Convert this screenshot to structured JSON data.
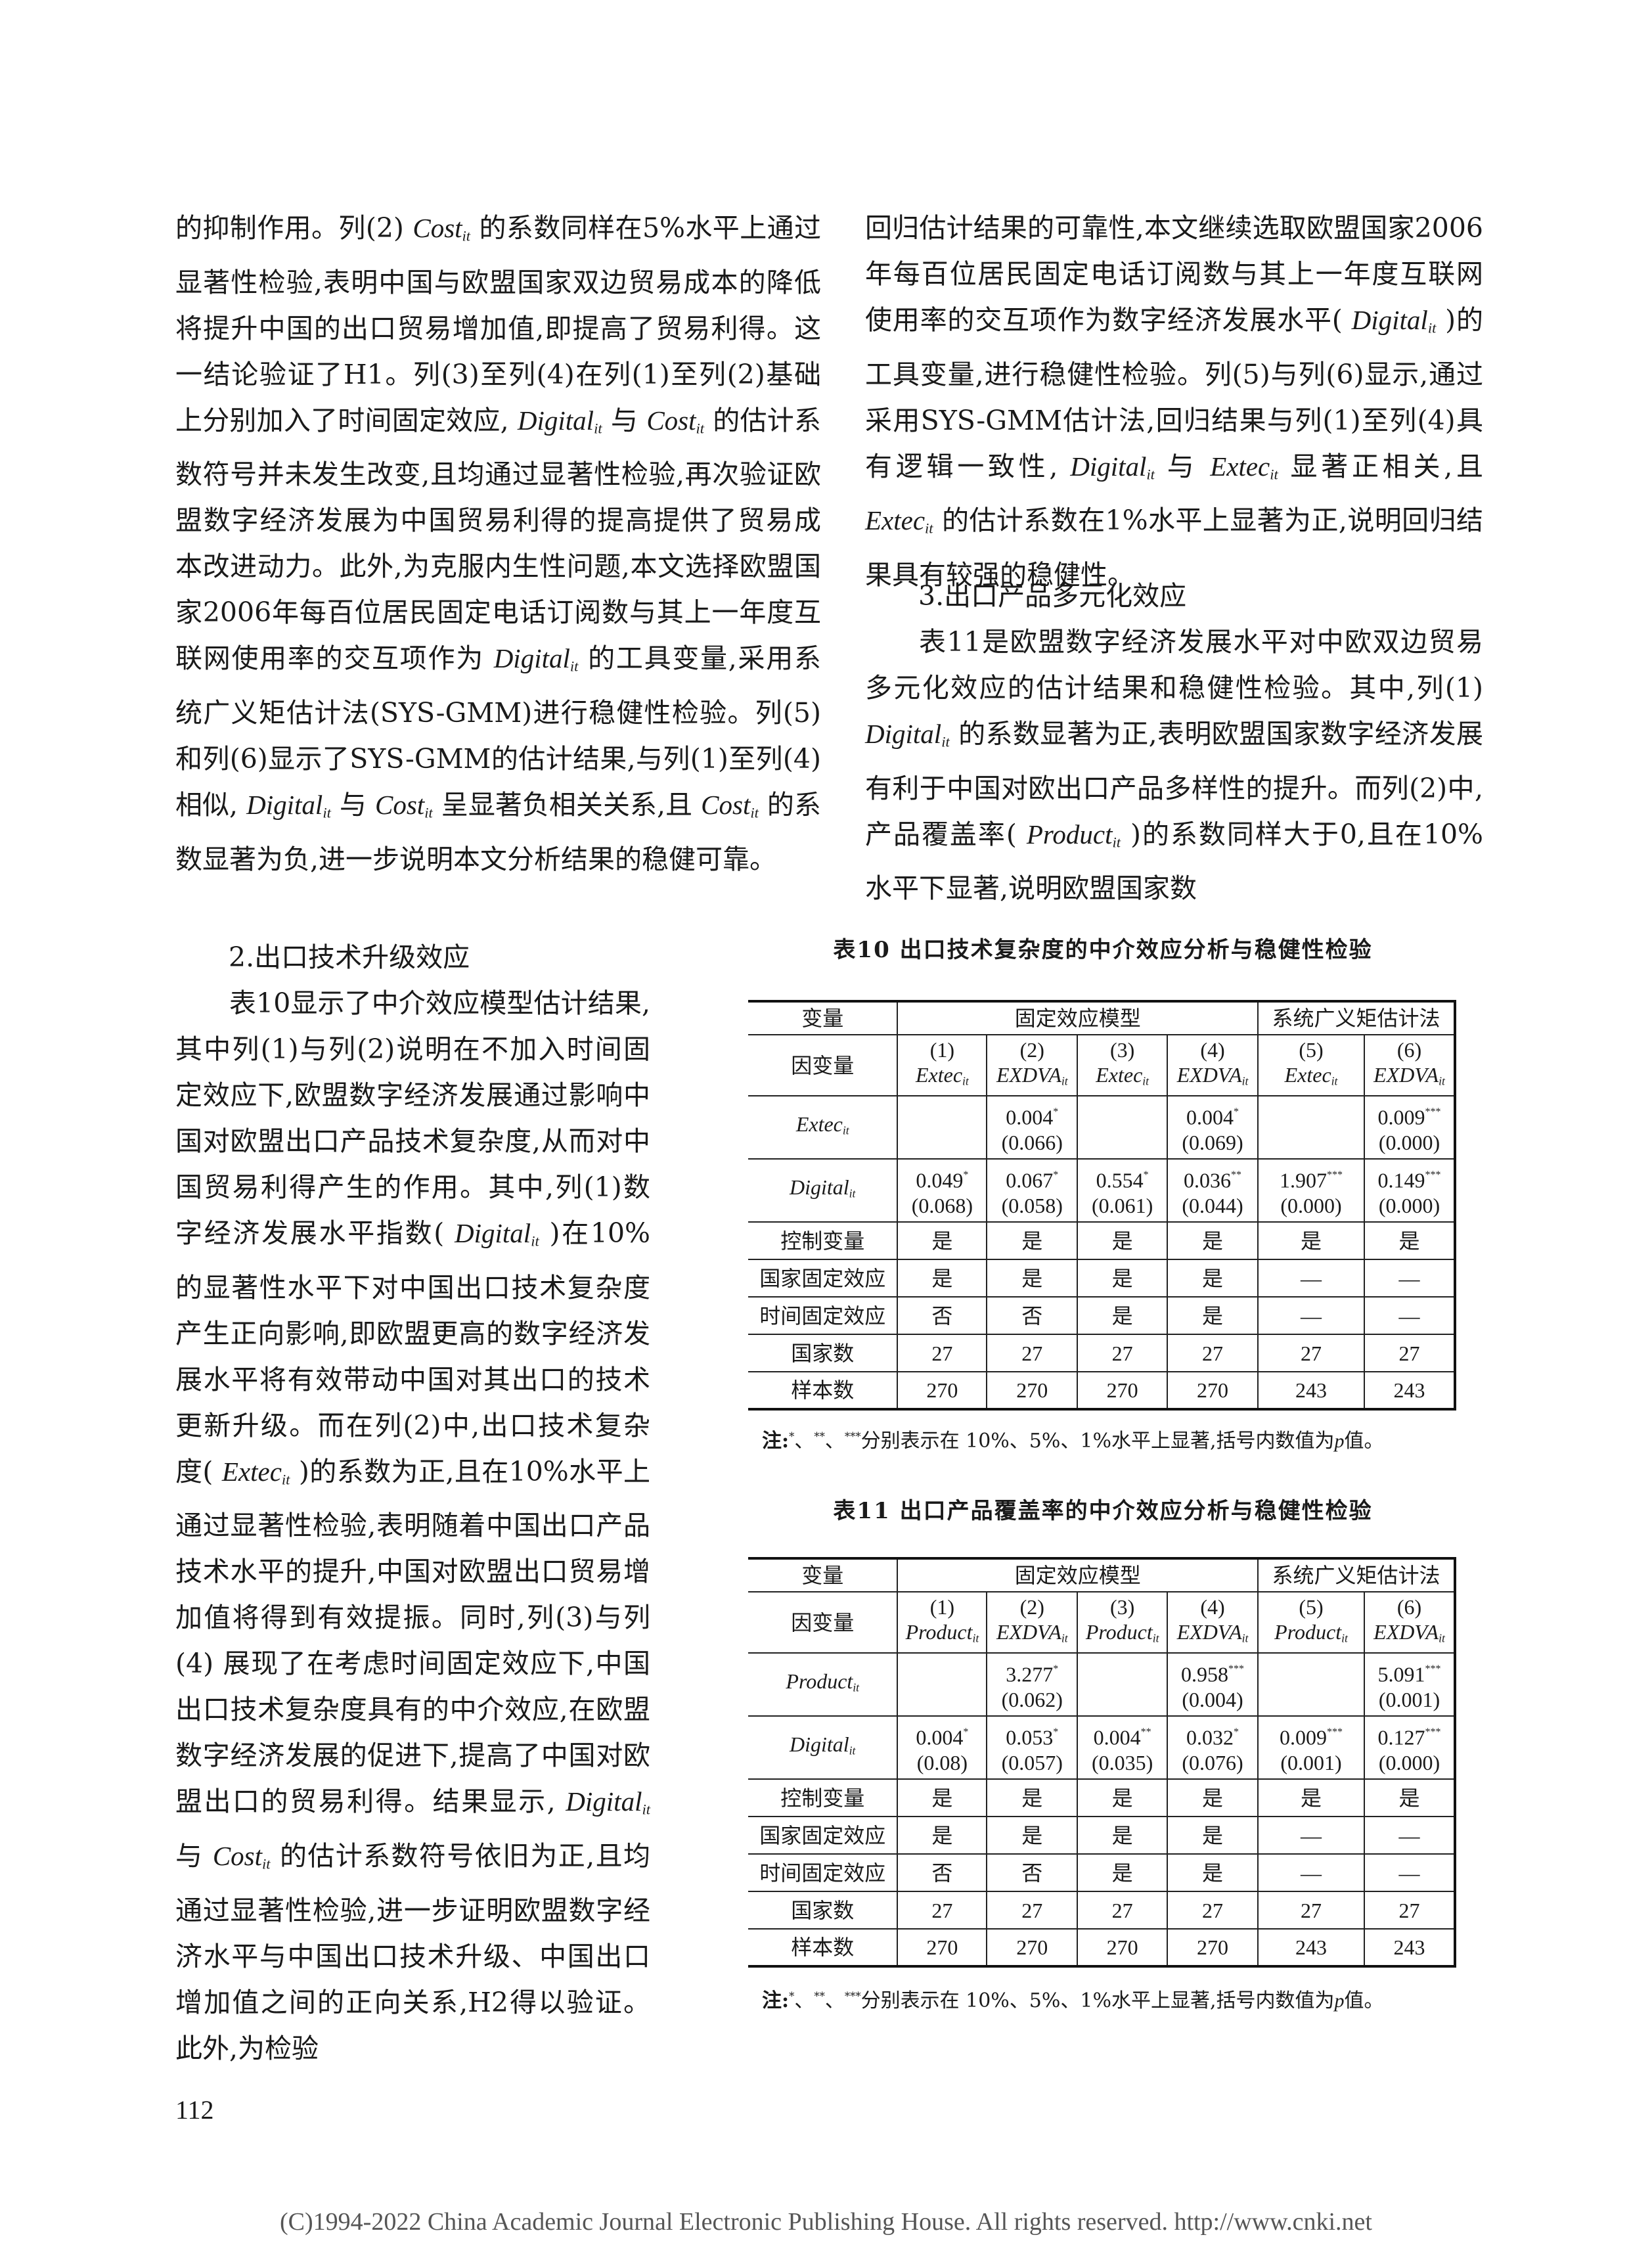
{
  "left_top": {
    "paragraphs": [
      {
        "indent": false,
        "segments": [
          {
            "t": "的抑制作用。列(2) "
          },
          {
            "var": "Cost",
            "sub": "it"
          },
          {
            "t": " 的系数同样在5%水平上通过显著性检验,表明中国与欧盟国家双边贸易成本的降低将提升中国的出口贸易增加值,即提高了贸易利得。这一结论验证了H1。列(3)至列(4)在列(1)至列(2)基础上分别加入了时间固定效应, "
          },
          {
            "var": "Digital",
            "sub": "it"
          },
          {
            "t": " 与 "
          },
          {
            "var": "Cost",
            "sub": "it"
          },
          {
            "t": " 的估计系数符号并未发生改变,且均通过显著性检验,再次验证欧盟数字经济发展为中国贸易利得的提高提供了贸易成本改进动力。此外,为克服内生性问题,本文选择欧盟国家2006年每百位居民固定电话订阅数与其上一年度互联网使用率的交互项作为 "
          },
          {
            "var": "Digital",
            "sub": "it"
          },
          {
            "t": " 的工具变量,采用系统广义矩估计法(SYS-GMM)进行稳健性检验。列(5)和列(6)显示了SYS-GMM的估计结果,与列(1)至列(4)相似, "
          },
          {
            "var": "Digital",
            "sub": "it"
          },
          {
            "t": " 与 "
          },
          {
            "var": "Cost",
            "sub": "it"
          },
          {
            "t": " 呈显著负相关关系,且 "
          },
          {
            "var": "Cost",
            "sub": "it"
          },
          {
            "t": " 的系数显著为负,进一步说明本文分析结果的稳健可靠。"
          }
        ]
      }
    ]
  },
  "heading2": "2.出口技术升级效应",
  "left_bottom": {
    "paragraphs": [
      {
        "indent": true,
        "segments": [
          {
            "t": "表10显示了中介效应模型估计结果,其中列(1)与列(2)说明在不加入时间固定效应下,欧盟数字经济发展通过影响中国对欧盟出口产品技术复杂度,从而对中国贸易利得产生的作用。其中,列(1)数字经济发展水平指数( "
          },
          {
            "var": "Digital",
            "sub": "it"
          },
          {
            "t": " )在10%的显著性水平下对中国出口技术复杂度产生正向影响,即欧盟更高的数字经济发展水平将有效带动中国对其出口的技术更新升级。而在列(2)中,出口技术复杂度( "
          },
          {
            "var": "Extec",
            "sub": "it"
          },
          {
            "t": " )的系数为正,且在10%水平上通过显著性检验,表明随着中国出口产品技术水平的提升,中国对欧盟出口贸易增加值将得到有效提振。同时,列(3)与列(4) 展现了在考虑时间固定效应下,中国出口技术复杂度具有的中介效应,在欧盟数字经济发展的促进下,提高了中国对欧盟出口的贸易利得。结果显示, "
          },
          {
            "var": "Digital",
            "sub": "it"
          },
          {
            "t": " 与 "
          },
          {
            "var": "Cost",
            "sub": "it"
          },
          {
            "t": " 的估计系数符号依旧为正,且均通过显著性检验,进一步证明欧盟数字经济水平与中国出口技术升级、中国出口增加值之间的正向关系,H2得以验证。此外,为检验"
          }
        ]
      }
    ]
  },
  "right_top": {
    "paragraphs": [
      {
        "indent": false,
        "segments": [
          {
            "t": "回归估计结果的可靠性,本文继续选取欧盟国家2006年每百位居民固定电话订阅数与其上一年度互联网使用率的交互项作为数字经济发展水平( "
          },
          {
            "var": "Digital",
            "sub": "it"
          },
          {
            "t": " )的工具变量,进行稳健性检验。列(5)与列(6)显示,通过采用SYS-GMM估计法,回归结果与列(1)至列(4)具有逻辑一致性, "
          },
          {
            "var": "Digital",
            "sub": "it"
          },
          {
            "t": " 与 "
          },
          {
            "var": "Extec",
            "sub": "it"
          },
          {
            "t": " 显著正相关,且 "
          },
          {
            "var": "Extec",
            "sub": "it"
          },
          {
            "t": " 的估计系数在1%水平上显著为正,说明回归结果具有较强的稳健性。"
          }
        ]
      }
    ]
  },
  "heading3": "3.出口产品多元化效应",
  "right_bottom": {
    "paragraphs": [
      {
        "indent": true,
        "segments": [
          {
            "t": "表11是欧盟数字经济发展水平对中欧双边贸易多元化效应的估计结果和稳健性检验。其中,列(1) "
          },
          {
            "var": "Digital",
            "sub": "it"
          },
          {
            "t": " 的系数显著为正,表明欧盟国家数字经济发展有利于中国对欧出口产品多样性的提升。而列(2)中,产品覆盖率( "
          },
          {
            "var": "Product",
            "sub": "it"
          },
          {
            "t": " )的系数同样大于0,且在10%水平下显著,说明欧盟国家数"
          }
        ]
      }
    ]
  },
  "tables": [
    {
      "title": "表10  出口技术复杂度的中介效应分析与稳健性检验",
      "header": {
        "label": "变量",
        "group1": "固定效应模型",
        "group2": "系统广义矩估计法"
      },
      "dep_label": "因变量",
      "dep_vars": [
        {
          "num": "(1)",
          "var": "Extec",
          "sub": "it"
        },
        {
          "num": "(2)",
          "var": "EXDVA",
          "sub": "it"
        },
        {
          "num": "(3)",
          "var": "Extec",
          "sub": "it"
        },
        {
          "num": "(4)",
          "var": "EXDVA",
          "sub": "it"
        },
        {
          "num": "(5)",
          "var": "Extec",
          "sub": "it"
        },
        {
          "num": "(6)",
          "var": "EXDVA",
          "sub": "it"
        }
      ],
      "coef_rows": [
        {
          "var": "Extec",
          "sub": "it",
          "cells": [
            null,
            {
              "v": "0.004",
              "star": "*",
              "p": "(0.066)"
            },
            null,
            {
              "v": "0.004",
              "star": "*",
              "p": "(0.069)"
            },
            null,
            {
              "v": "0.009",
              "star": "***",
              "p": "(0.000)"
            }
          ]
        },
        {
          "var": "Digital",
          "sub": "it",
          "cells": [
            {
              "v": "0.049",
              "star": "*",
              "p": "(0.068)"
            },
            {
              "v": "0.067",
              "star": "*",
              "p": "(0.058)"
            },
            {
              "v": "0.554",
              "star": "*",
              "p": "(0.061)"
            },
            {
              "v": "0.036",
              "star": "**",
              "p": "(0.044)"
            },
            {
              "v": "1.907",
              "star": "***",
              "p": "(0.000)"
            },
            {
              "v": "0.149",
              "star": "***",
              "p": "(0.000)"
            }
          ]
        }
      ],
      "text_rows": [
        {
          "label": "控制变量",
          "cells": [
            "是",
            "是",
            "是",
            "是",
            "是",
            "是"
          ]
        },
        {
          "label": "国家固定效应",
          "cells": [
            "是",
            "是",
            "是",
            "是",
            "—",
            "—"
          ]
        },
        {
          "label": "时间固定效应",
          "cells": [
            "否",
            "否",
            "是",
            "是",
            "—",
            "—"
          ]
        },
        {
          "label": "国家数",
          "cells": [
            "27",
            "27",
            "27",
            "27",
            "27",
            "27"
          ]
        },
        {
          "label": "样本数",
          "cells": [
            "270",
            "270",
            "270",
            "270",
            "243",
            "243"
          ]
        }
      ],
      "note": {
        "prefix": "注:",
        "stars": [
          "*",
          "**",
          "***"
        ],
        "text": "分别表示在 10%、5%、1%水平上显著,括号内数值为",
        "p": "p",
        "end": "值。"
      }
    },
    {
      "title": "表11  出口产品覆盖率的中介效应分析与稳健性检验",
      "header": {
        "label": "变量",
        "group1": "固定效应模型",
        "group2": "系统广义矩估计法"
      },
      "dep_label": "因变量",
      "dep_vars": [
        {
          "num": "(1)",
          "var": "Product",
          "sub": "it"
        },
        {
          "num": "(2)",
          "var": "EXDVA",
          "sub": "it"
        },
        {
          "num": "(3)",
          "var": "Product",
          "sub": "it"
        },
        {
          "num": "(4)",
          "var": "EXDVA",
          "sub": "it"
        },
        {
          "num": "(5)",
          "var": "Product",
          "sub": "it"
        },
        {
          "num": "(6)",
          "var": "EXDVA",
          "sub": "it"
        }
      ],
      "coef_rows": [
        {
          "var": "Product",
          "sub": "it",
          "cells": [
            null,
            {
              "v": "3.277",
              "star": "*",
              "p": "(0.062)"
            },
            null,
            {
              "v": "0.958",
              "star": "***",
              "p": "(0.004)"
            },
            null,
            {
              "v": "5.091",
              "star": "***",
              "p": "(0.001)"
            }
          ]
        },
        {
          "var": "Digital",
          "sub": "it",
          "cells": [
            {
              "v": "0.004",
              "star": "*",
              "p": "(0.08)"
            },
            {
              "v": "0.053",
              "star": "*",
              "p": "(0.057)"
            },
            {
              "v": "0.004",
              "star": "**",
              "p": "(0.035)"
            },
            {
              "v": "0.032",
              "star": "*",
              "p": "(0.076)"
            },
            {
              "v": "0.009",
              "star": "***",
              "p": "(0.001)"
            },
            {
              "v": "0.127",
              "star": "***",
              "p": "(0.000)"
            }
          ]
        }
      ],
      "text_rows": [
        {
          "label": "控制变量",
          "cells": [
            "是",
            "是",
            "是",
            "是",
            "是",
            "是"
          ]
        },
        {
          "label": "国家固定效应",
          "cells": [
            "是",
            "是",
            "是",
            "是",
            "—",
            "—"
          ]
        },
        {
          "label": "时间固定效应",
          "cells": [
            "否",
            "否",
            "是",
            "是",
            "—",
            "—"
          ]
        },
        {
          "label": "国家数",
          "cells": [
            "27",
            "27",
            "27",
            "27",
            "27",
            "27"
          ]
        },
        {
          "label": "样本数",
          "cells": [
            "270",
            "270",
            "270",
            "270",
            "243",
            "243"
          ]
        }
      ],
      "note": {
        "prefix": "注:",
        "stars": [
          "*",
          "**",
          "***"
        ],
        "text": "分别表示在 10%、5%、1%水平上显著,括号内数值为",
        "p": "p",
        "end": "值。"
      }
    }
  ],
  "page_number": "112",
  "footer": "(C)1994-2022 China Academic Journal Electronic Publishing House. All rights reserved.    http://www.cnki.net"
}
